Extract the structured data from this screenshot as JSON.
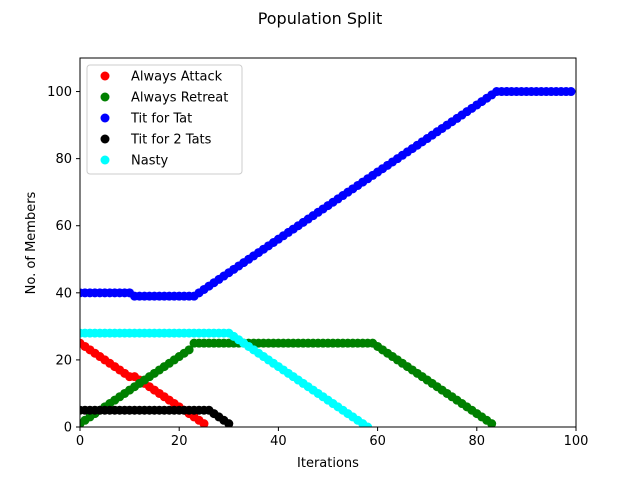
{
  "chart_data": {
    "type": "scatter",
    "title": "Population Split",
    "xlabel": "Iterations",
    "ylabel": "No. of Members",
    "xlim": [
      0,
      100
    ],
    "ylim": [
      0,
      110
    ],
    "xticks": [
      0,
      20,
      40,
      60,
      80,
      100
    ],
    "yticks": [
      0,
      20,
      40,
      60,
      80,
      100
    ],
    "grid": false,
    "legend_position": "top-left",
    "series": [
      {
        "name": "Always Attack",
        "color": "#ff0000",
        "x": [
          0,
          1,
          2,
          3,
          4,
          5,
          6,
          7,
          8,
          9,
          10,
          11,
          12,
          13,
          14,
          15,
          16,
          17,
          18,
          19,
          20,
          21,
          22,
          23,
          24,
          25
        ],
        "y": [
          25,
          24,
          23,
          22,
          21,
          20,
          19,
          18,
          17,
          16,
          15,
          15,
          14,
          13,
          12,
          11,
          10,
          9,
          8,
          7,
          6,
          5,
          4,
          3,
          2,
          1
        ]
      },
      {
        "name": "Always Retreat",
        "color": "#008000",
        "x": [
          0,
          1,
          2,
          3,
          4,
          5,
          6,
          7,
          8,
          9,
          10,
          11,
          12,
          13,
          14,
          15,
          16,
          17,
          18,
          19,
          20,
          21,
          22,
          23,
          24,
          25,
          26,
          27,
          28,
          29,
          30,
          31,
          32,
          33,
          34,
          35,
          36,
          37,
          38,
          39,
          40,
          41,
          42,
          43,
          44,
          45,
          46,
          47,
          48,
          49,
          50,
          51,
          52,
          53,
          54,
          55,
          56,
          57,
          58,
          59,
          60,
          61,
          62,
          63,
          64,
          65,
          66,
          67,
          68,
          69,
          70,
          71,
          72,
          73,
          74,
          75,
          76,
          77,
          78,
          79,
          80,
          81,
          82,
          83
        ],
        "y": [
          1,
          2,
          3,
          4,
          5,
          6,
          7,
          8,
          9,
          10,
          11,
          12,
          13,
          14,
          15,
          16,
          17,
          18,
          19,
          20,
          21,
          22,
          23,
          25,
          25,
          25,
          25,
          25,
          25,
          25,
          25,
          25,
          25,
          25,
          25,
          25,
          25,
          25,
          25,
          25,
          25,
          25,
          25,
          25,
          25,
          25,
          25,
          25,
          25,
          25,
          25,
          25,
          25,
          25,
          25,
          25,
          25,
          25,
          25,
          25,
          24,
          23,
          22,
          21,
          20,
          19,
          18,
          17,
          16,
          15,
          14,
          13,
          12,
          11,
          10,
          9,
          8,
          7,
          6,
          5,
          4,
          3,
          2,
          1
        ]
      },
      {
        "name": "Tit for Tat",
        "color": "#0000ff",
        "x": [
          0,
          1,
          2,
          3,
          4,
          5,
          6,
          7,
          8,
          9,
          10,
          11,
          12,
          13,
          14,
          15,
          16,
          17,
          18,
          19,
          20,
          21,
          22,
          23,
          24,
          25,
          26,
          27,
          28,
          29,
          30,
          31,
          32,
          33,
          34,
          35,
          36,
          37,
          38,
          39,
          40,
          41,
          42,
          43,
          44,
          45,
          46,
          47,
          48,
          49,
          50,
          51,
          52,
          53,
          54,
          55,
          56,
          57,
          58,
          59,
          60,
          61,
          62,
          63,
          64,
          65,
          66,
          67,
          68,
          69,
          70,
          71,
          72,
          73,
          74,
          75,
          76,
          77,
          78,
          79,
          80,
          81,
          82,
          83,
          84,
          85,
          86,
          87,
          88,
          89,
          90,
          91,
          92,
          93,
          94,
          95,
          96,
          97,
          98,
          99
        ],
        "y": [
          40,
          40,
          40,
          40,
          40,
          40,
          40,
          40,
          40,
          40,
          40,
          39,
          39,
          39,
          39,
          39,
          39,
          39,
          39,
          39,
          39,
          39,
          39,
          39,
          40,
          41,
          42,
          43,
          44,
          45,
          46,
          47,
          48,
          49,
          50,
          51,
          52,
          53,
          54,
          55,
          56,
          57,
          58,
          59,
          60,
          61,
          62,
          63,
          64,
          65,
          66,
          67,
          68,
          69,
          70,
          71,
          72,
          73,
          74,
          75,
          76,
          77,
          78,
          79,
          80,
          81,
          82,
          83,
          84,
          85,
          86,
          87,
          88,
          89,
          90,
          91,
          92,
          93,
          94,
          95,
          96,
          97,
          98,
          99,
          100,
          100,
          100,
          100,
          100,
          100,
          100,
          100,
          100,
          100,
          100,
          100,
          100,
          100,
          100,
          100
        ]
      },
      {
        "name": "Tit for 2 Tats",
        "color": "#000000",
        "x": [
          0,
          1,
          2,
          3,
          4,
          5,
          6,
          7,
          8,
          9,
          10,
          11,
          12,
          13,
          14,
          15,
          16,
          17,
          18,
          19,
          20,
          21,
          22,
          23,
          24,
          25,
          26,
          27,
          28,
          29,
          30
        ],
        "y": [
          5,
          5,
          5,
          5,
          5,
          5,
          5,
          5,
          5,
          5,
          5,
          5,
          5,
          5,
          5,
          5,
          5,
          5,
          5,
          5,
          5,
          5,
          5,
          5,
          5,
          5,
          5,
          4,
          3,
          2,
          1
        ]
      },
      {
        "name": "Nasty",
        "color": "#00ffff",
        "x": [
          0,
          1,
          2,
          3,
          4,
          5,
          6,
          7,
          8,
          9,
          10,
          11,
          12,
          13,
          14,
          15,
          16,
          17,
          18,
          19,
          20,
          21,
          22,
          23,
          24,
          25,
          26,
          27,
          28,
          29,
          30,
          31,
          32,
          33,
          34,
          35,
          36,
          37,
          38,
          39,
          40,
          41,
          42,
          43,
          44,
          45,
          46,
          47,
          48,
          49,
          50,
          51,
          52,
          53,
          54,
          55,
          56,
          57,
          58
        ],
        "y": [
          28,
          28,
          28,
          28,
          28,
          28,
          28,
          28,
          28,
          28,
          28,
          28,
          28,
          28,
          28,
          28,
          28,
          28,
          28,
          28,
          28,
          28,
          28,
          28,
          28,
          28,
          28,
          28,
          28,
          28,
          28,
          27,
          26,
          25,
          24,
          23,
          22,
          21,
          20,
          19,
          18,
          17,
          16,
          15,
          14,
          13,
          12,
          11,
          10,
          9,
          8,
          7,
          6,
          5,
          4,
          3,
          2,
          1,
          0
        ]
      }
    ]
  }
}
